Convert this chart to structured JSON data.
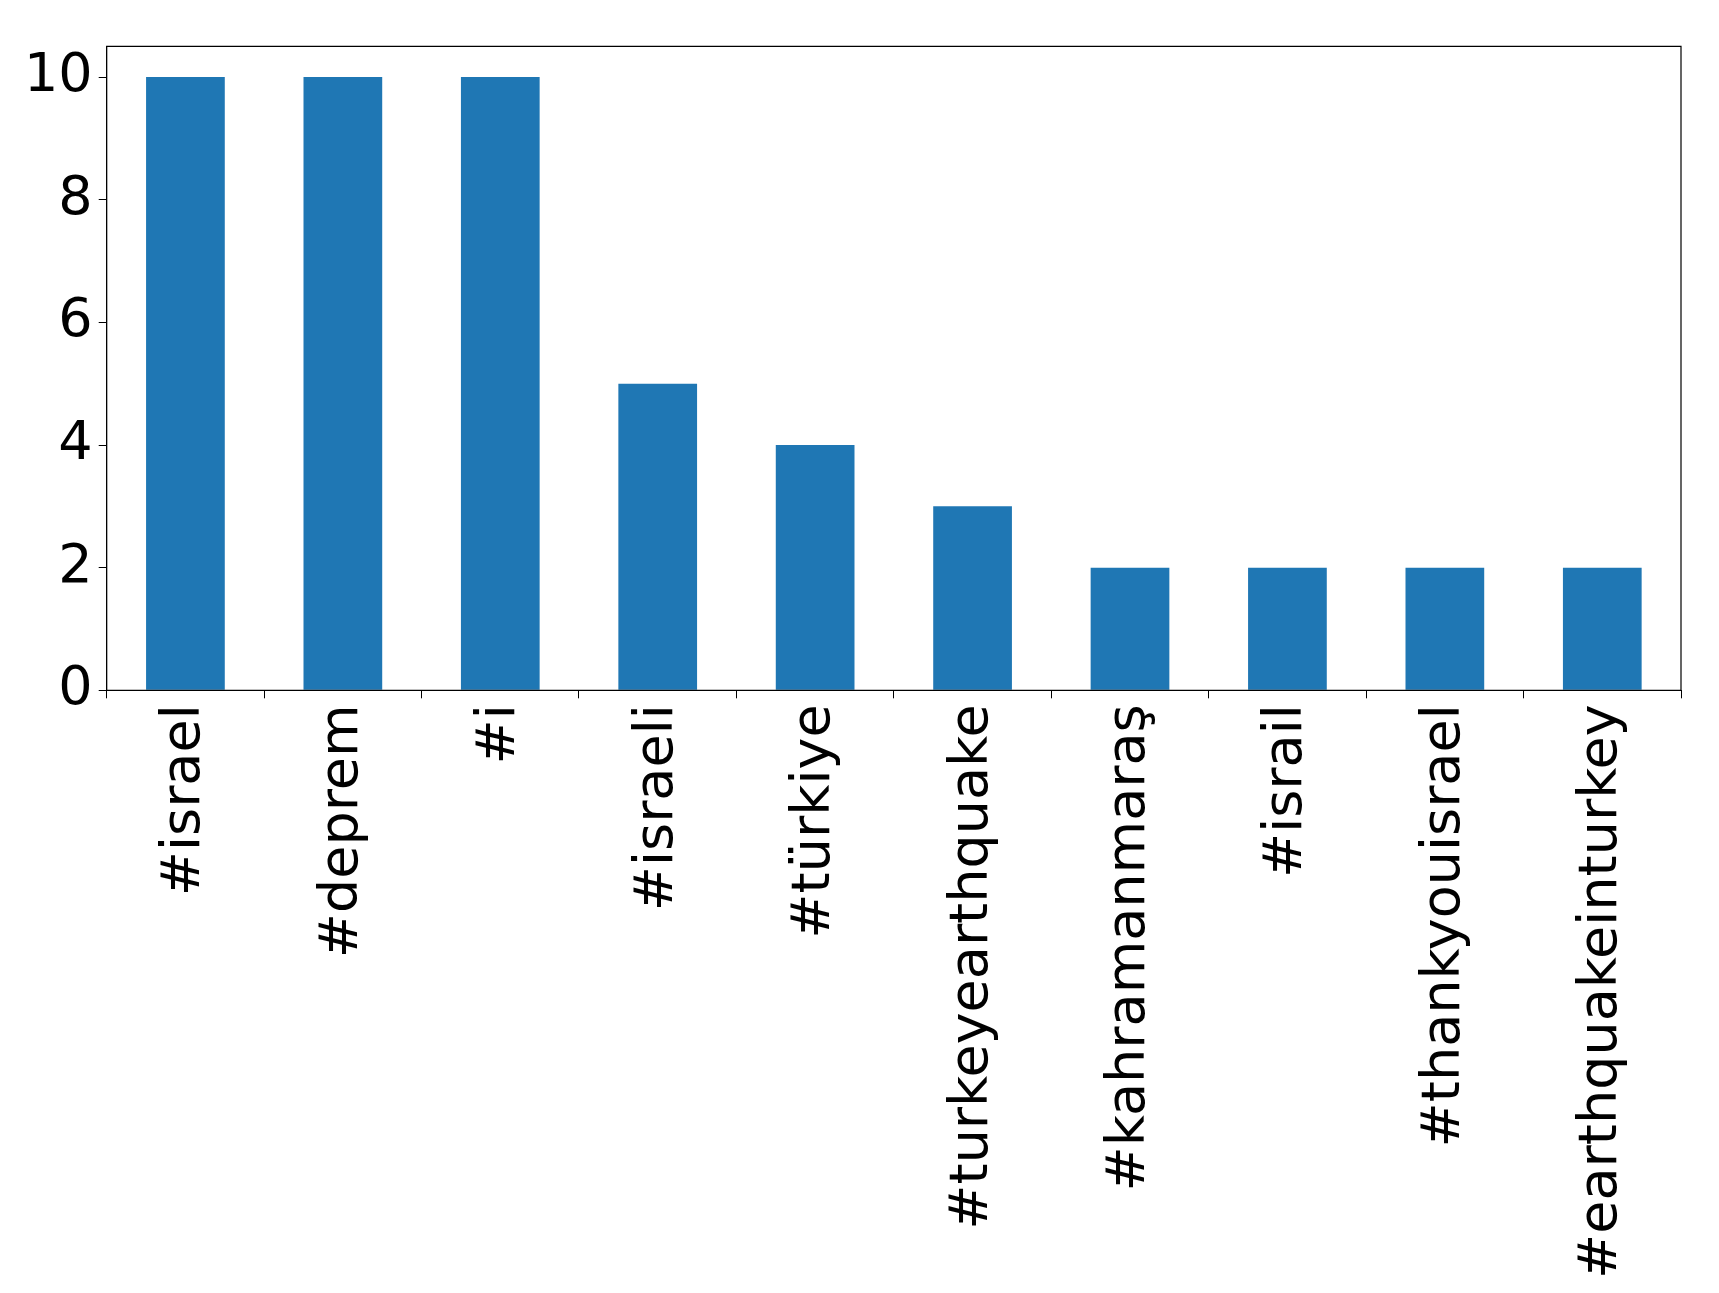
{
  "chart_data": {
    "type": "bar",
    "categories": [
      "#israel",
      "#deprem",
      "#i",
      "#israeli",
      "#türkiye",
      "#turkeyearthquake",
      "#kahramanmaraş",
      "#israil",
      "#thankyouisrael",
      "#earthquakeinturkey"
    ],
    "values": [
      10,
      10,
      10,
      5,
      4,
      3,
      2,
      2,
      2,
      2
    ],
    "color": "#1f77b4",
    "ylim": [
      0,
      10.5
    ],
    "yticks": [
      0,
      2,
      4,
      6,
      8,
      10
    ],
    "grid": false,
    "legend": false
  }
}
